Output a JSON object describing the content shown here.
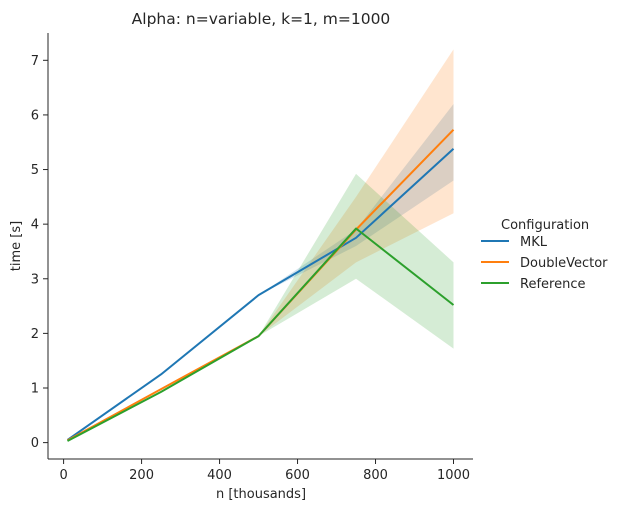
{
  "chart_data": {
    "type": "line",
    "title": "Alpha: n=variable, k=1, m=1000",
    "xlabel": "n [thousands]",
    "ylabel": "time [s]",
    "xlim": [
      -40,
      1050
    ],
    "ylim": [
      -0.3,
      7.5
    ],
    "x_ticks": [
      0,
      200,
      400,
      600,
      800,
      1000
    ],
    "y_ticks": [
      0,
      1,
      2,
      3,
      4,
      5,
      6,
      7
    ],
    "grid": false,
    "legend": {
      "title": "Configuration",
      "placement": "outside-right"
    },
    "series": [
      {
        "name": "MKL",
        "color": "#1f77b4",
        "x": [
          10,
          250,
          500,
          750,
          1000
        ],
        "y": [
          0.05,
          1.25,
          2.7,
          3.75,
          5.38
        ],
        "ci_lower": [
          0.05,
          1.25,
          2.7,
          3.6,
          4.8
        ],
        "ci_upper": [
          0.05,
          1.25,
          2.7,
          3.9,
          6.2
        ]
      },
      {
        "name": "DoubleVector",
        "color": "#ff7f0e",
        "x": [
          10,
          250,
          500,
          750,
          1000
        ],
        "y": [
          0.04,
          0.98,
          1.95,
          3.9,
          5.73
        ],
        "ci_lower": [
          0.04,
          0.98,
          1.95,
          3.3,
          4.2
        ],
        "ci_upper": [
          0.04,
          0.98,
          1.95,
          4.5,
          7.2
        ]
      },
      {
        "name": "Reference",
        "color": "#2ca02c",
        "x": [
          10,
          250,
          500,
          750,
          1000
        ],
        "y": [
          0.03,
          0.93,
          1.95,
          3.92,
          2.52
        ],
        "ci_lower": [
          0.03,
          0.93,
          1.95,
          3.0,
          1.72
        ],
        "ci_upper": [
          0.03,
          0.93,
          1.95,
          4.92,
          3.3
        ]
      }
    ]
  }
}
